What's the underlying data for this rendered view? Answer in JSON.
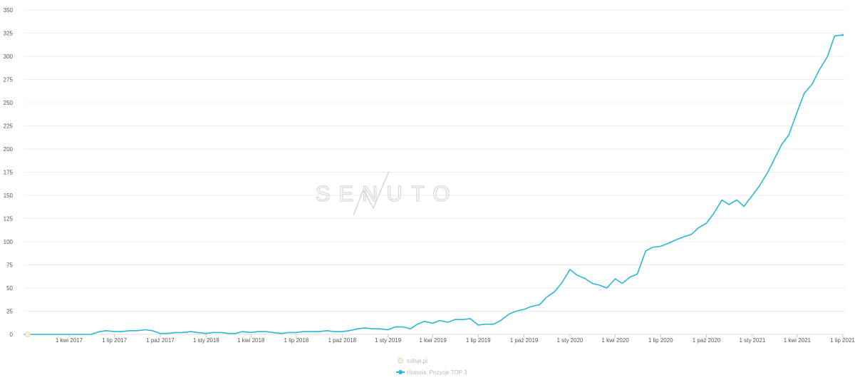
{
  "brand": {
    "watermark": "SENUTO"
  },
  "chart_data": {
    "type": "line",
    "xlabel": "",
    "ylabel": "",
    "ylim": [
      0,
      350
    ],
    "grid": true,
    "y_ticks": [
      0,
      25,
      50,
      75,
      100,
      125,
      150,
      175,
      200,
      225,
      250,
      275,
      300,
      325,
      350
    ],
    "x_ticks": [
      "1 kwi 2017",
      "1 lip 2017",
      "1 paź 2017",
      "1 sty 2018",
      "1 kwi 2018",
      "1 lip 2018",
      "1 paź 2018",
      "1 sty 2019",
      "1 kwi 2019",
      "1 lip 2019",
      "1 paź 2019",
      "1 sty 2020",
      "1 kwi 2020",
      "1 lip 2020",
      "1 paź 2020",
      "1 sty 2021",
      "1 kwi 2021",
      "1 lip 2021"
    ],
    "legend": [
      "tullsje.pl",
      "Historia: Pozycje TOP 3"
    ],
    "legend_placement": "bottom-center",
    "colors": {
      "series": "#2bb7d6",
      "grid": "#ececec",
      "point": "#e8d9a8"
    },
    "series": [
      {
        "name": "tullsje.pl",
        "points": [
          [
            "2017-01-08",
            0
          ]
        ]
      },
      {
        "name": "Historia: Pozycje TOP 3",
        "points": [
          [
            "2017-01-01",
            0
          ],
          [
            "2017-02-01",
            0
          ],
          [
            "2017-03-01",
            0
          ],
          [
            "2017-04-01",
            0
          ],
          [
            "2017-05-01",
            0
          ],
          [
            "2017-05-15",
            0
          ],
          [
            "2017-06-01",
            3
          ],
          [
            "2017-06-15",
            4
          ],
          [
            "2017-07-01",
            3
          ],
          [
            "2017-07-15",
            3
          ],
          [
            "2017-08-01",
            4
          ],
          [
            "2017-08-15",
            4
          ],
          [
            "2017-09-01",
            5
          ],
          [
            "2017-09-15",
            4
          ],
          [
            "2017-10-01",
            1
          ],
          [
            "2017-10-15",
            1
          ],
          [
            "2017-11-01",
            2
          ],
          [
            "2017-11-15",
            2
          ],
          [
            "2017-12-01",
            3
          ],
          [
            "2017-12-15",
            2
          ],
          [
            "2018-01-01",
            1
          ],
          [
            "2018-01-15",
            2
          ],
          [
            "2018-02-01",
            2
          ],
          [
            "2018-02-15",
            1
          ],
          [
            "2018-03-01",
            1
          ],
          [
            "2018-03-15",
            3
          ],
          [
            "2018-04-01",
            2
          ],
          [
            "2018-04-15",
            3
          ],
          [
            "2018-05-01",
            3
          ],
          [
            "2018-05-15",
            2
          ],
          [
            "2018-06-01",
            1
          ],
          [
            "2018-06-15",
            2
          ],
          [
            "2018-07-01",
            2
          ],
          [
            "2018-07-15",
            3
          ],
          [
            "2018-08-01",
            3
          ],
          [
            "2018-08-15",
            3
          ],
          [
            "2018-09-01",
            4
          ],
          [
            "2018-09-15",
            3
          ],
          [
            "2018-10-01",
            3
          ],
          [
            "2018-10-15",
            4
          ],
          [
            "2018-11-01",
            6
          ],
          [
            "2018-11-15",
            7
          ],
          [
            "2018-12-01",
            6
          ],
          [
            "2018-12-15",
            6
          ],
          [
            "2019-01-01",
            5
          ],
          [
            "2019-01-15",
            8
          ],
          [
            "2019-02-01",
            8
          ],
          [
            "2019-02-15",
            6
          ],
          [
            "2019-03-01",
            11
          ],
          [
            "2019-03-15",
            14
          ],
          [
            "2019-04-01",
            12
          ],
          [
            "2019-04-15",
            15
          ],
          [
            "2019-05-01",
            13
          ],
          [
            "2019-05-15",
            16
          ],
          [
            "2019-06-01",
            16
          ],
          [
            "2019-06-15",
            17
          ],
          [
            "2019-07-01",
            10
          ],
          [
            "2019-07-15",
            11
          ],
          [
            "2019-08-01",
            11
          ],
          [
            "2019-08-15",
            15
          ],
          [
            "2019-09-01",
            22
          ],
          [
            "2019-09-15",
            25
          ],
          [
            "2019-10-01",
            27
          ],
          [
            "2019-10-15",
            30
          ],
          [
            "2019-11-01",
            32
          ],
          [
            "2019-11-15",
            40
          ],
          [
            "2019-12-01",
            46
          ],
          [
            "2019-12-15",
            55
          ],
          [
            "2020-01-01",
            70
          ],
          [
            "2020-01-15",
            64
          ],
          [
            "2020-02-01",
            60
          ],
          [
            "2020-02-15",
            55
          ],
          [
            "2020-03-01",
            53
          ],
          [
            "2020-03-15",
            50
          ],
          [
            "2020-04-01",
            60
          ],
          [
            "2020-04-15",
            55
          ],
          [
            "2020-05-01",
            62
          ],
          [
            "2020-05-15",
            65
          ],
          [
            "2020-06-01",
            90
          ],
          [
            "2020-06-15",
            94
          ],
          [
            "2020-07-01",
            95
          ],
          [
            "2020-07-15",
            98
          ],
          [
            "2020-08-01",
            102
          ],
          [
            "2020-08-15",
            105
          ],
          [
            "2020-09-01",
            108
          ],
          [
            "2020-09-15",
            115
          ],
          [
            "2020-10-01",
            120
          ],
          [
            "2020-10-15",
            130
          ],
          [
            "2020-11-01",
            145
          ],
          [
            "2020-11-15",
            140
          ],
          [
            "2020-12-01",
            145
          ],
          [
            "2020-12-15",
            138
          ],
          [
            "2021-01-01",
            150
          ],
          [
            "2021-01-15",
            160
          ],
          [
            "2021-02-01",
            175
          ],
          [
            "2021-02-15",
            190
          ],
          [
            "2021-03-01",
            205
          ],
          [
            "2021-03-15",
            215
          ],
          [
            "2021-04-01",
            240
          ],
          [
            "2021-04-15",
            260
          ],
          [
            "2021-05-01",
            270
          ],
          [
            "2021-05-15",
            285
          ],
          [
            "2021-06-01",
            300
          ],
          [
            "2021-06-15",
            322
          ],
          [
            "2021-07-01",
            323
          ]
        ]
      }
    ]
  }
}
